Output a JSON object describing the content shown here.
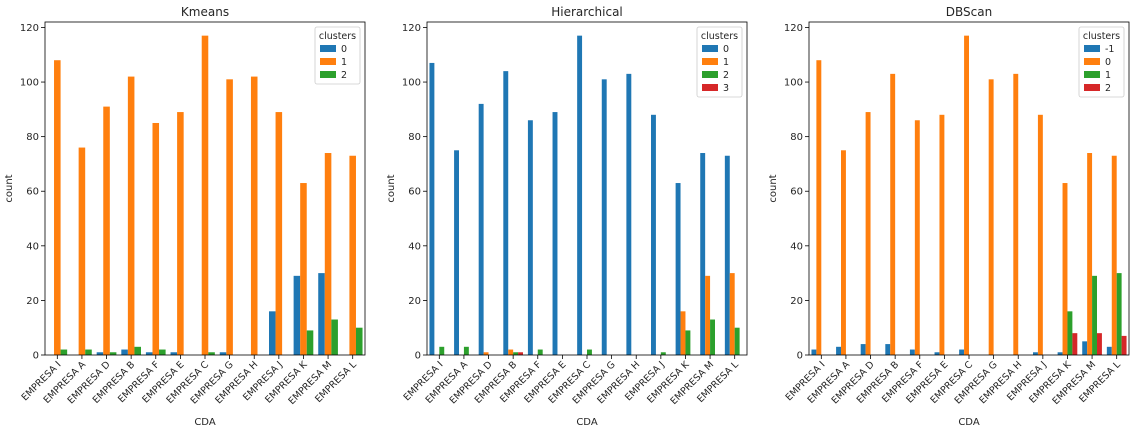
{
  "chart_data": [
    {
      "type": "bar",
      "title": "Kmeans",
      "xlabel": "CDA",
      "ylabel": "count",
      "ylim": [
        0,
        122
      ],
      "yticks": [
        0,
        20,
        40,
        60,
        80,
        100,
        120
      ],
      "categories": [
        "EMPRESA I",
        "EMPRESA A",
        "EMPRESA D",
        "EMPRESA B",
        "EMPRESA F",
        "EMPRESA E",
        "EMPRESA C",
        "EMPRESA G",
        "EMPRESA H",
        "EMPRESA J",
        "EMPRESA K",
        "EMPRESA M",
        "EMPRESA L"
      ],
      "legend": {
        "title": "clusters",
        "position": "top-right"
      },
      "series": [
        {
          "name": "0",
          "color": "#1f77b4",
          "values": [
            0,
            0,
            1,
            2,
            1,
            1,
            0,
            1,
            0,
            16,
            29,
            30,
            0
          ]
        },
        {
          "name": "1",
          "color": "#ff7f0e",
          "values": [
            108,
            76,
            91,
            102,
            85,
            89,
            117,
            101,
            102,
            89,
            63,
            74,
            73
          ]
        },
        {
          "name": "2",
          "color": "#2ca02c",
          "values": [
            2,
            2,
            1,
            3,
            2,
            0,
            1,
            0,
            0,
            0,
            9,
            13,
            10
          ]
        }
      ]
    },
    {
      "type": "bar",
      "title": "Hierarchical",
      "xlabel": "CDA",
      "ylabel": "count",
      "ylim": [
        0,
        122
      ],
      "yticks": [
        0,
        20,
        40,
        60,
        80,
        100,
        120
      ],
      "categories": [
        "EMPRESA I",
        "EMPRESA A",
        "EMPRESA D",
        "EMPRESA B",
        "EMPRESA F",
        "EMPRESA E",
        "EMPRESA C",
        "EMPRESA G",
        "EMPRESA H",
        "EMPRESA J",
        "EMPRESA K",
        "EMPRESA M",
        "EMPRESA L"
      ],
      "legend": {
        "title": "clusters",
        "position": "top-right"
      },
      "series": [
        {
          "name": "0",
          "color": "#1f77b4",
          "values": [
            107,
            75,
            92,
            104,
            86,
            89,
            117,
            101,
            103,
            88,
            63,
            74,
            73
          ]
        },
        {
          "name": "1",
          "color": "#ff7f0e",
          "values": [
            0,
            0,
            1,
            2,
            0,
            0,
            0,
            0,
            0,
            0,
            16,
            29,
            30
          ]
        },
        {
          "name": "2",
          "color": "#2ca02c",
          "values": [
            3,
            3,
            0,
            1,
            2,
            0,
            2,
            0,
            0,
            1,
            9,
            13,
            10
          ]
        },
        {
          "name": "3",
          "color": "#d62728",
          "values": [
            0,
            0,
            0,
            1,
            0,
            0,
            0,
            0,
            0,
            0,
            0,
            0,
            0
          ]
        }
      ]
    },
    {
      "type": "bar",
      "title": "DBScan",
      "xlabel": "CDA",
      "ylabel": "count",
      "ylim": [
        0,
        122
      ],
      "yticks": [
        0,
        20,
        40,
        60,
        80,
        100,
        120
      ],
      "categories": [
        "EMPRESA I",
        "EMPRESA A",
        "EMPRESA D",
        "EMPRESA B",
        "EMPRESA F",
        "EMPRESA E",
        "EMPRESA C",
        "EMPRESA G",
        "EMPRESA H",
        "EMPRESA J",
        "EMPRESA K",
        "EMPRESA M",
        "EMPRESA L"
      ],
      "legend": {
        "title": "clusters",
        "position": "top-right"
      },
      "series": [
        {
          "name": "-1",
          "color": "#1f77b4",
          "values": [
            2,
            3,
            4,
            4,
            2,
            1,
            2,
            0,
            0,
            1,
            1,
            5,
            3
          ]
        },
        {
          "name": "0",
          "color": "#ff7f0e",
          "values": [
            108,
            75,
            89,
            103,
            86,
            88,
            117,
            101,
            103,
            88,
            63,
            74,
            73
          ]
        },
        {
          "name": "1",
          "color": "#2ca02c",
          "values": [
            0,
            0,
            0,
            0,
            0,
            0,
            0,
            0,
            0,
            0,
            16,
            29,
            30
          ]
        },
        {
          "name": "2",
          "color": "#d62728",
          "values": [
            0,
            0,
            0,
            0,
            0,
            0,
            0,
            0,
            0,
            0,
            8,
            8,
            7
          ]
        }
      ]
    }
  ]
}
